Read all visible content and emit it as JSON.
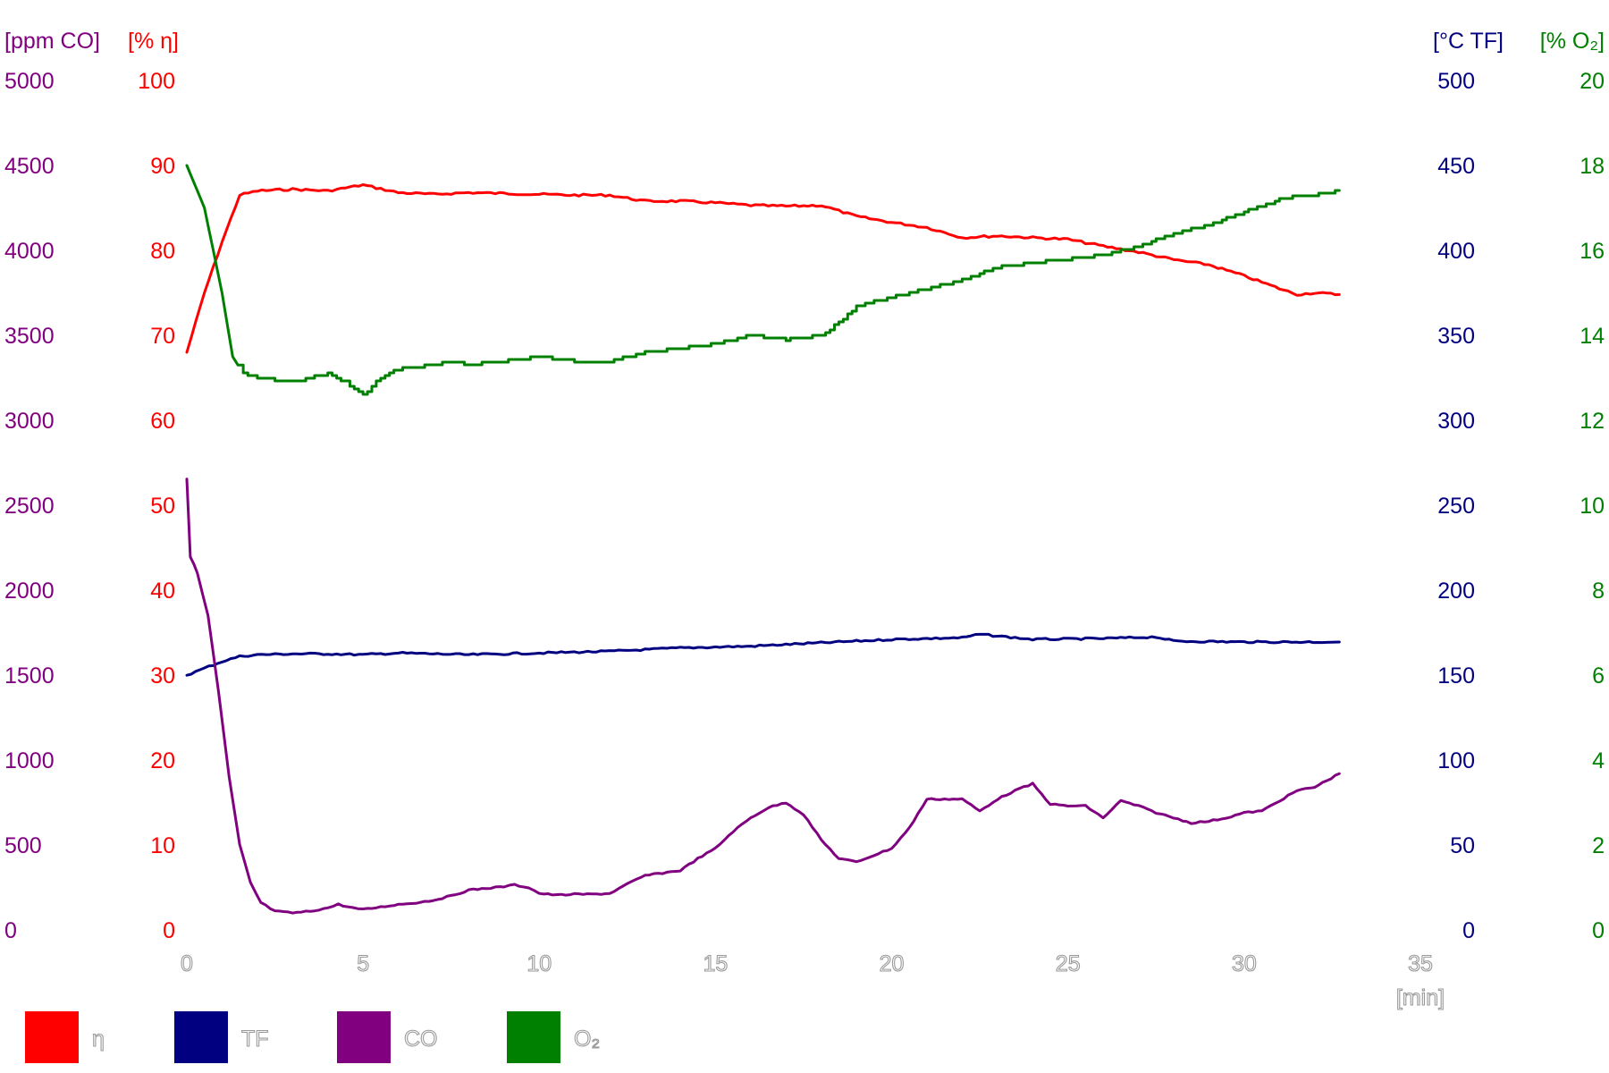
{
  "chart_data": {
    "type": "line",
    "x_unit_label": "[min]",
    "x_ticks": [
      0,
      5,
      10,
      15,
      20,
      25,
      30,
      35
    ],
    "xlim": [
      0,
      35
    ],
    "axes": [
      {
        "id": "co",
        "unit_label": "[ppm CO]",
        "ylim": [
          0,
          5000
        ],
        "ticks": [
          0,
          500,
          1000,
          1500,
          2000,
          2500,
          3000,
          3500,
          4000,
          4500,
          5000
        ],
        "color": "#800080",
        "side": "left"
      },
      {
        "id": "eta",
        "unit_label": "[% η]",
        "ylim": [
          0,
          100
        ],
        "ticks": [
          0,
          10,
          20,
          30,
          40,
          50,
          60,
          70,
          80,
          90,
          100
        ],
        "color": "#ff0000",
        "side": "left"
      },
      {
        "id": "tf",
        "unit_label": "[°C TF]",
        "ylim": [
          0,
          500
        ],
        "ticks": [
          0,
          50,
          100,
          150,
          200,
          250,
          300,
          350,
          400,
          450,
          500
        ],
        "color": "#000080",
        "side": "right"
      },
      {
        "id": "o2",
        "unit_label": "[% O₂]",
        "ylim": [
          0,
          20
        ],
        "ticks": [
          0,
          2,
          4,
          6,
          8,
          10,
          12,
          14,
          16,
          18,
          20
        ],
        "color": "#008000",
        "side": "right"
      }
    ],
    "series": [
      {
        "name": "η",
        "axis": "eta",
        "color": "#ff0000",
        "x": [
          0,
          0.5,
          1.0,
          1.5,
          2,
          3,
          4,
          5,
          6,
          7,
          8,
          9,
          10,
          11,
          12,
          13,
          14,
          15,
          16,
          17,
          18,
          19,
          20,
          21,
          22,
          23,
          24,
          25,
          26,
          27,
          28,
          29,
          30,
          31,
          31.5,
          32,
          32.7
        ],
        "y": [
          68,
          75,
          81,
          86.5,
          87,
          87.2,
          87,
          87.7,
          86.8,
          86.6,
          86.8,
          86.7,
          86.6,
          86.5,
          86.5,
          85.8,
          85.8,
          85.6,
          85.3,
          85.2,
          85.3,
          84,
          83.3,
          82.7,
          81.5,
          81.7,
          81.5,
          81.3,
          80.5,
          79.8,
          78.9,
          78.3,
          77,
          75.5,
          74.8,
          75,
          74.8
        ]
      },
      {
        "name": "TF",
        "axis": "tf",
        "color": "#000080",
        "x": [
          0,
          0.5,
          1,
          1.5,
          2,
          3,
          4,
          5,
          6,
          8,
          10,
          12,
          14,
          16,
          18,
          20,
          22,
          22.5,
          24,
          26,
          27.5,
          28,
          30,
          32.7
        ],
        "y": [
          150,
          154,
          158,
          161,
          162,
          162.5,
          162.5,
          162,
          163,
          162,
          163,
          164,
          166,
          167,
          169,
          171,
          172,
          174,
          171,
          171.5,
          172.5,
          170,
          169.5,
          169.5
        ]
      },
      {
        "name": "CO",
        "axis": "co",
        "color": "#800080",
        "x": [
          0,
          0.1,
          0.3,
          0.6,
          0.9,
          1.2,
          1.5,
          1.8,
          2.1,
          2.5,
          3,
          3.5,
          4,
          4.3,
          4.7,
          5,
          5.5,
          6,
          6.5,
          7,
          7.5,
          8,
          8.5,
          9,
          9.3,
          9.7,
          10,
          10.5,
          11,
          11.5,
          12,
          12.5,
          13,
          14,
          14.5,
          15,
          15.5,
          16,
          16.5,
          17,
          17.5,
          18,
          18.5,
          19,
          19.5,
          20,
          20.5,
          21,
          21.5,
          22,
          22.5,
          23,
          23.5,
          24,
          24.5,
          25,
          25.5,
          26,
          26.5,
          27,
          27.5,
          28,
          28.5,
          29,
          29.5,
          30,
          30.5,
          31,
          31.5,
          32,
          32.7
        ],
        "y": [
          2650,
          2200,
          2100,
          1850,
          1400,
          900,
          500,
          280,
          160,
          110,
          100,
          110,
          130,
          150,
          130,
          120,
          135,
          150,
          160,
          175,
          200,
          235,
          245,
          255,
          265,
          250,
          215,
          205,
          210,
          210,
          215,
          270,
          320,
          350,
          420,
          480,
          580,
          660,
          720,
          750,
          680,
          530,
          420,
          400,
          440,
          480,
          600,
          770,
          770,
          770,
          700,
          770,
          820,
          860,
          740,
          730,
          730,
          660,
          760,
          730,
          690,
          660,
          630,
          640,
          660,
          690,
          700,
          760,
          820,
          840,
          920
        ]
      },
      {
        "name": "O₂",
        "axis": "o2",
        "color": "#008000",
        "x": [
          0,
          0.5,
          1,
          1.3,
          1.6,
          2,
          3,
          4,
          4.5,
          5,
          5.5,
          6,
          7,
          7.5,
          8,
          9,
          10,
          11,
          12,
          13,
          14,
          15,
          16,
          17,
          18,
          18.5,
          19,
          20,
          21,
          22,
          23,
          24,
          25,
          26,
          27,
          28,
          29,
          30,
          31,
          31.5,
          32,
          32.7
        ],
        "y": [
          18,
          17,
          15,
          13.5,
          13.1,
          13,
          12.9,
          13.1,
          12.9,
          12.6,
          13.0,
          13.2,
          13.3,
          13.4,
          13.3,
          13.4,
          13.5,
          13.4,
          13.4,
          13.6,
          13.7,
          13.8,
          14.0,
          13.9,
          14.0,
          14.3,
          14.7,
          14.9,
          15.1,
          15.3,
          15.6,
          15.7,
          15.8,
          15.9,
          16.1,
          16.4,
          16.6,
          16.9,
          17.2,
          17.3,
          17.3,
          17.4
        ]
      }
    ],
    "legend": {
      "placement": "bottom-left",
      "entries": [
        "η",
        "TF",
        "CO",
        "O₂"
      ]
    },
    "grid": false
  }
}
